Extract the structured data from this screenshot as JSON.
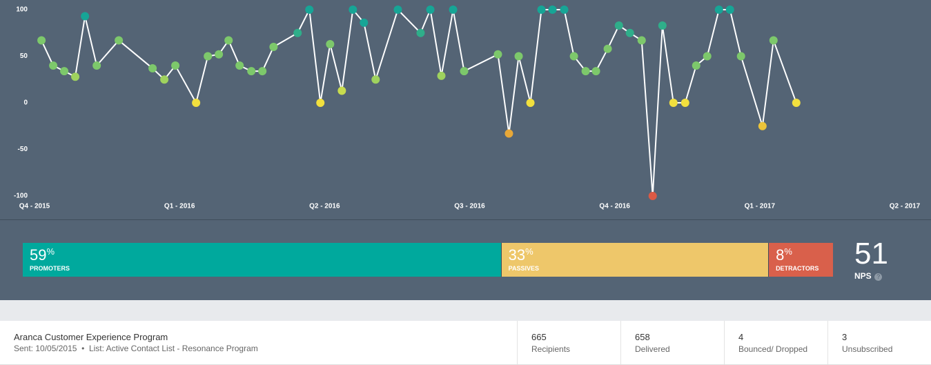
{
  "chart_data": {
    "type": "line",
    "x": [
      0.048,
      0.129,
      0.205,
      0.281,
      0.348,
      0.429,
      0.581,
      0.814,
      0.895,
      0.971,
      1.114,
      1.195,
      1.271,
      1.338,
      1.414,
      1.495,
      1.571,
      1.648,
      1.814,
      1.895,
      1.971,
      2.038,
      2.119,
      2.195,
      2.271,
      2.352,
      2.505,
      2.662,
      2.729,
      2.805,
      2.886,
      2.962,
      3.195,
      3.271,
      3.338,
      3.419,
      3.495,
      3.571,
      3.652,
      3.719,
      3.8,
      3.871,
      3.952,
      4.029,
      4.105,
      4.186,
      4.262,
      4.329,
      4.405,
      4.486,
      4.562,
      4.638,
      4.719,
      4.795,
      4.871,
      5.019,
      5.095,
      5.252
    ],
    "series": [
      {
        "color": "#ffffff",
        "values": [
          67,
          40,
          34,
          28,
          93,
          40,
          67,
          37,
          25,
          40,
          0,
          50,
          52,
          67,
          40,
          34,
          34,
          60,
          75,
          100,
          0,
          63,
          13,
          100,
          86,
          25,
          100,
          75,
          100,
          29,
          100,
          34,
          52,
          -33,
          50,
          0,
          100,
          100,
          100,
          50,
          34,
          34,
          58,
          83,
          75,
          67,
          -100,
          83,
          0,
          0,
          40,
          50,
          100,
          100,
          50,
          -25,
          67,
          0
        ],
        "point_colors": [
          "#7dc86b",
          "#7dc86b",
          "#7dc86b",
          "#9fd25e",
          "#17a596",
          "#7dc86b",
          "#7dc86b",
          "#7dc86b",
          "#9fd25e",
          "#7dc86b",
          "#f2e03e",
          "#7dc86b",
          "#7dc86b",
          "#7dc86b",
          "#7dc86b",
          "#7dc86b",
          "#7dc86b",
          "#7dc86b",
          "#2fae8a",
          "#17a596",
          "#f2e03e",
          "#7dc86b",
          "#c8dc4e",
          "#17a596",
          "#17a596",
          "#9fd25e",
          "#17a596",
          "#2fae8a",
          "#17a596",
          "#9fd25e",
          "#17a596",
          "#7dc86b",
          "#7dc86b",
          "#e8a838",
          "#7dc86b",
          "#f2e03e",
          "#17a596",
          "#17a596",
          "#17a596",
          "#7dc86b",
          "#7dc86b",
          "#7dc86b",
          "#7dc86b",
          "#2fae8a",
          "#2fae8a",
          "#7dc86b",
          "#dc5a45",
          "#2fae8a",
          "#f2e03e",
          "#f2e03e",
          "#7dc86b",
          "#7dc86b",
          "#17a596",
          "#17a596",
          "#7dc86b",
          "#ecc43a",
          "#7dc86b",
          "#f2e03e"
        ]
      }
    ],
    "xlim": [
      0,
      6
    ],
    "xticks": [
      {
        "value": 0,
        "label": "Q4 - 2015"
      },
      {
        "value": 1,
        "label": "Q1 - 2016"
      },
      {
        "value": 2,
        "label": "Q2 - 2016"
      },
      {
        "value": 3,
        "label": "Q3 - 2016"
      },
      {
        "value": 4,
        "label": "Q4 - 2016"
      },
      {
        "value": 5,
        "label": "Q1 - 2017"
      },
      {
        "value": 6,
        "label": "Q2 - 2017"
      }
    ],
    "ylim": [
      -100,
      100
    ],
    "yticks": [
      -100,
      -50,
      0,
      50,
      100
    ],
    "grid": false
  },
  "breakdown": {
    "percent_sign": "%",
    "segments": [
      {
        "name": "PROMOTERS",
        "value": 59,
        "color": "#00a99d"
      },
      {
        "name": "PASSIVES",
        "value": 33,
        "color": "#eec76a"
      },
      {
        "name": "DETRACTORS",
        "value": 8,
        "color": "#d9604b"
      }
    ],
    "nps": 51,
    "nps_label": "NPS",
    "help_icon": "?"
  },
  "footer": {
    "program": "Aranca Customer Experience Program",
    "sent": "Sent: 10/05/2015",
    "separator": "•",
    "list": "List: Active Contact List - Resonance Program",
    "stats": [
      {
        "value": 665,
        "label": "Recipients"
      },
      {
        "value": 658,
        "label": "Delivered"
      },
      {
        "value": 4,
        "label": "Bounced/ Dropped"
      },
      {
        "value": 3,
        "label": "Unsubscribed"
      }
    ]
  }
}
